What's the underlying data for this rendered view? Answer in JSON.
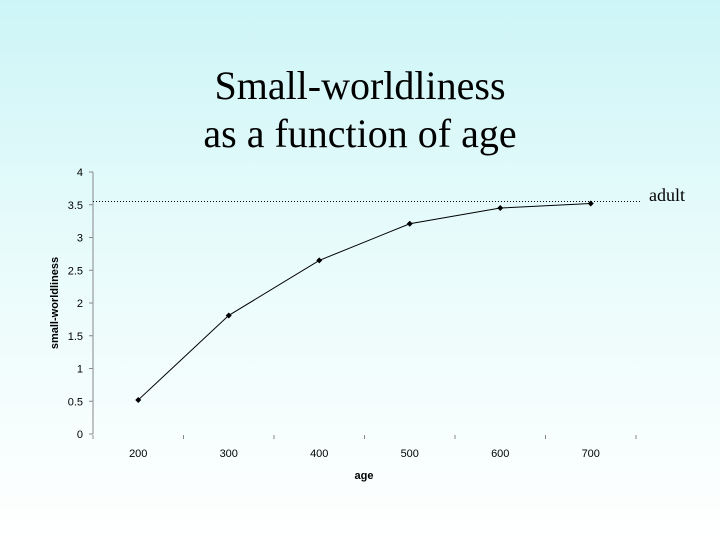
{
  "title": {
    "line1": "Small-worldliness",
    "line2": "as a function of age"
  },
  "chart_data": {
    "type": "line",
    "x": [
      200,
      300,
      400,
      500,
      600,
      700
    ],
    "series": [
      {
        "values": [
          0.52,
          1.81,
          2.65,
          3.21,
          3.45,
          3.52
        ]
      }
    ],
    "xlabel": "age",
    "ylabel": "small-worldliness",
    "ylim": [
      0,
      4
    ],
    "yticks": [
      "0",
      "0.5",
      "1",
      "1.5",
      "2",
      "2.5",
      "3",
      "3.5",
      "4"
    ],
    "xticks": [
      "200",
      "300",
      "400",
      "500",
      "600",
      "700"
    ],
    "grid": false,
    "reference_line": {
      "value": 3.55,
      "label": "adult",
      "style": "dotted"
    }
  }
}
